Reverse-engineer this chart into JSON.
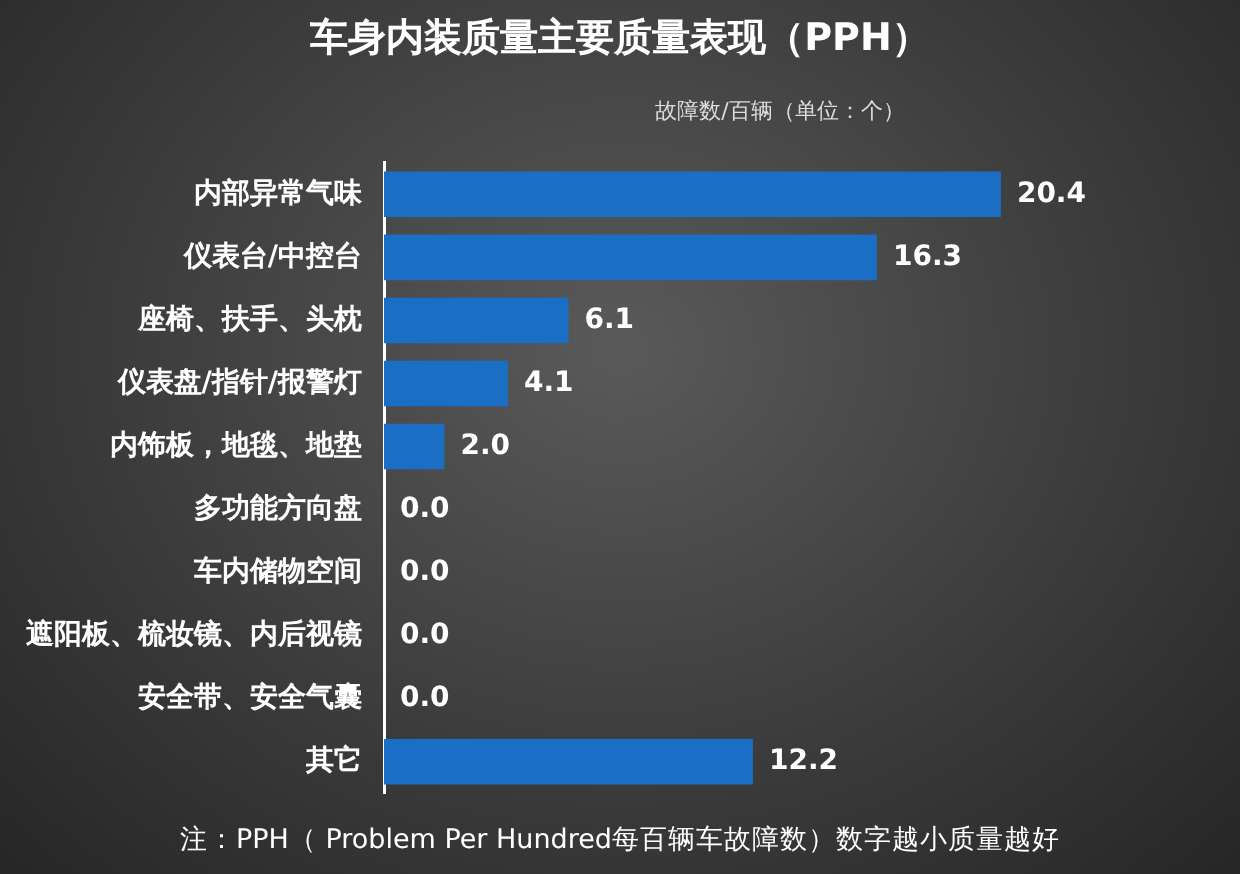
{
  "chart_data": {
    "type": "bar",
    "orientation": "horizontal",
    "title": "车身内装质量主要质量表现（PPH）",
    "subtitle": "故障数/百辆（单位：个）",
    "categories": [
      "内部异常气味",
      "仪表台/中控台",
      "座椅、扶手、头枕",
      "仪表盘/指针/报警灯",
      "内饰板，地毯、地垫",
      "多功能方向盘",
      "车内储物空间",
      "遮阳板、梳妆镜、内后视镜",
      "安全带、安全气囊",
      "其它"
    ],
    "values": [
      20.4,
      16.3,
      6.1,
      4.1,
      2.0,
      0.0,
      0.0,
      0.0,
      0.0,
      12.2
    ],
    "value_labels": [
      "20.4",
      "16.3",
      "6.1",
      "4.1",
      "2.0",
      "0.0",
      "0.0",
      "0.0",
      "0.0",
      "12.2"
    ],
    "color": "#1a6fc4",
    "grid": false,
    "legend": false,
    "annotations": [
      "注：PPH（ Problem Per Hundred每百辆车故障数）数字越小质量越好"
    ]
  }
}
